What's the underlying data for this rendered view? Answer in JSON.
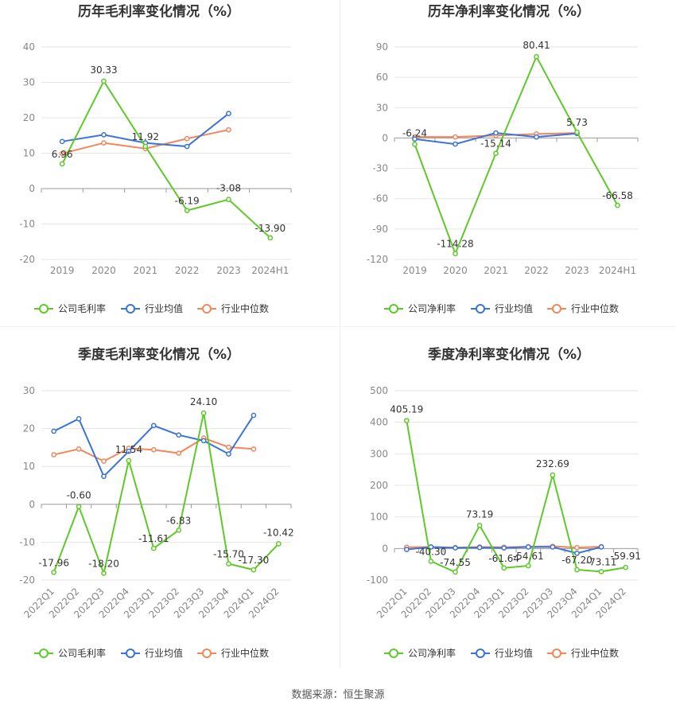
{
  "source_text": "数据来源：恒生聚源",
  "colors": {
    "company": "#5fc929",
    "industry_avg": "#3a74d8",
    "industry_median": "#f4875a",
    "grid": "#e6e6e6",
    "axis_text": "#888888",
    "title": "#333333"
  },
  "chart_data": [
    {
      "type": "line",
      "title": "历年毛利率变化情况（%）",
      "categories": [
        "2019",
        "2020",
        "2021",
        "2022",
        "2023",
        "2024H1"
      ],
      "ylim": [
        -20,
        40
      ],
      "yticks": [
        "40",
        "30",
        "20",
        "10",
        "0",
        "-10",
        "-20"
      ],
      "legend_position": "bottom",
      "series": [
        {
          "name": "公司毛利率",
          "values": [
            6.96,
            30.33,
            11.92,
            -6.19,
            -3.08,
            -13.9
          ],
          "labels": [
            "6.96",
            "30.33",
            "11.92",
            "-6.19",
            "-3.08",
            "-13.90"
          ]
        },
        {
          "name": "行业均值",
          "values": [
            13.3,
            15.2,
            12.9,
            11.9,
            21.2,
            null
          ]
        },
        {
          "name": "行业中位数",
          "values": [
            9.9,
            12.9,
            11.3,
            14.1,
            16.6,
            null
          ]
        }
      ]
    },
    {
      "type": "line",
      "title": "历年净利率变化情况（%）",
      "categories": [
        "2019",
        "2020",
        "2021",
        "2022",
        "2023",
        "2024H1"
      ],
      "ylim": [
        -120,
        90
      ],
      "yticks": [
        "90",
        "60",
        "30",
        "0",
        "-30",
        "-60",
        "-90",
        "-120"
      ],
      "legend_position": "bottom",
      "series": [
        {
          "name": "公司净利率",
          "values": [
            -6.24,
            -114.28,
            -15.14,
            80.41,
            5.73,
            -66.58
          ],
          "labels": [
            "-6.24",
            "-114.28",
            "-15.14",
            "80.41",
            "5.73",
            "-66.58"
          ]
        },
        {
          "name": "行业均值",
          "values": [
            -1.0,
            -6.0,
            5.0,
            1.0,
            4.5,
            null
          ]
        },
        {
          "name": "行业中位数",
          "values": [
            1.0,
            1.0,
            2.5,
            4.0,
            5.0,
            null
          ]
        }
      ]
    },
    {
      "type": "line",
      "title": "季度毛利率变化情况（%）",
      "categories": [
        "2022Q1",
        "2022Q2",
        "2022Q3",
        "2022Q4",
        "2023Q1",
        "2023Q2",
        "2023Q3",
        "2023Q4",
        "2024Q1",
        "2024Q2"
      ],
      "ylim": [
        -20,
        30
      ],
      "yticks": [
        "30",
        "20",
        "10",
        "0",
        "-10",
        "-20"
      ],
      "legend_position": "bottom",
      "series": [
        {
          "name": "公司毛利率",
          "values": [
            -17.96,
            -0.6,
            -18.2,
            11.54,
            -11.61,
            -6.83,
            24.1,
            -15.7,
            -17.3,
            -10.42
          ],
          "labels": [
            "-17.96",
            "-0.60",
            "-18.20",
            "11.54",
            "-11.61",
            "-6.83",
            "24.10",
            "-15.70",
            "-17.30",
            "-10.42"
          ]
        },
        {
          "name": "行业均值",
          "values": [
            19.3,
            22.6,
            7.4,
            14.0,
            20.8,
            18.3,
            16.8,
            13.3,
            23.5,
            null
          ]
        },
        {
          "name": "行业中位数",
          "values": [
            13.1,
            14.6,
            11.4,
            14.8,
            14.4,
            13.5,
            17.5,
            15.1,
            14.6,
            null
          ]
        }
      ]
    },
    {
      "type": "line",
      "title": "季度净利率变化情况（%）",
      "categories": [
        "2022Q1",
        "2022Q2",
        "2022Q3",
        "2022Q4",
        "2023Q1",
        "2023Q2",
        "2023Q3",
        "2023Q4",
        "2024Q1",
        "2024Q2"
      ],
      "ylim": [
        -100,
        500
      ],
      "yticks": [
        "500",
        "400",
        "300",
        "200",
        "100",
        "0",
        "-100"
      ],
      "legend_position": "bottom",
      "series": [
        {
          "name": "公司净利率",
          "values": [
            405.19,
            -40.3,
            -74.55,
            73.19,
            -61.64,
            -54.61,
            232.69,
            -67.2,
            -73.11,
            -59.91
          ],
          "labels": [
            "405.19",
            "-40.30",
            "-74.55",
            "73.19",
            "-61.64",
            "-54.61",
            "232.69",
            "-67.20",
            "-73.11",
            "-59.91"
          ]
        },
        {
          "name": "行业均值",
          "values": [
            -3,
            5,
            2,
            3,
            2,
            5,
            5,
            -15,
            5,
            null
          ]
        },
        {
          "name": "行业中位数",
          "values": [
            4,
            5,
            3,
            5,
            4,
            6,
            7,
            3,
            6,
            null
          ]
        }
      ]
    }
  ]
}
